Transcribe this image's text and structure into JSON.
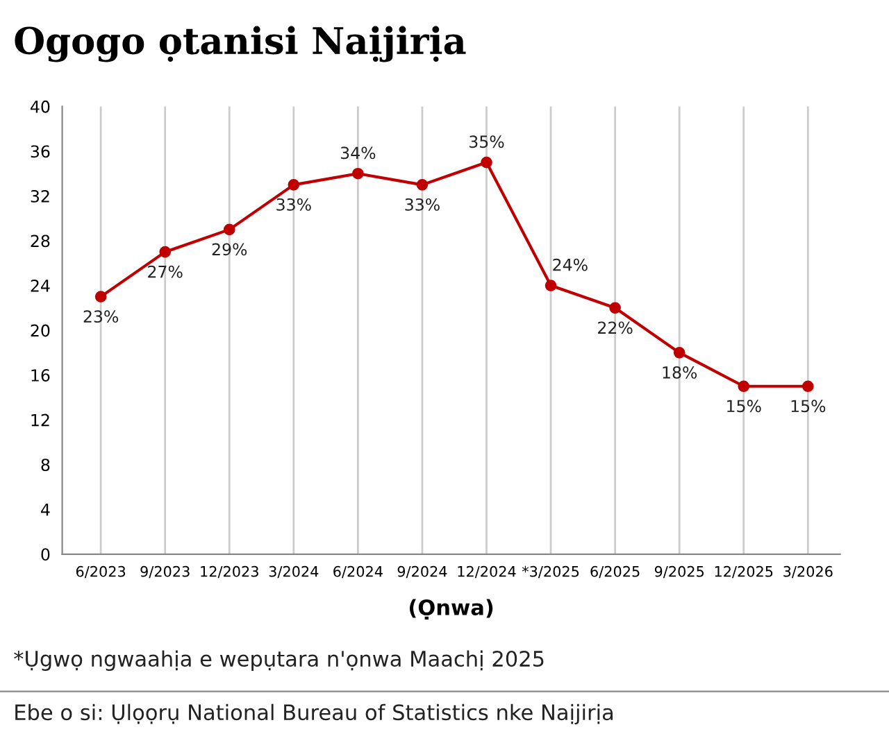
{
  "chart_data": {
    "type": "line",
    "title": "Ogogo ọtanisi Naịjirịa",
    "xlabel": "(Ọnwa)",
    "categories": [
      "6/2023",
      "9/2023",
      "12/2023",
      "3/2024",
      "6/2024",
      "9/2024",
      "12/2024",
      "*3/2025",
      "6/2025",
      "9/2025",
      "12/2025",
      "3/2026"
    ],
    "series": [
      {
        "color": "#c00000",
        "values": [
          23,
          27,
          29,
          33,
          34,
          33,
          35,
          24,
          22,
          18,
          15,
          15
        ],
        "value_labels": [
          "23%",
          "27%",
          "29%",
          "33%",
          "34%",
          "33%",
          "35%",
          "24%",
          "22%",
          "18%",
          "15%",
          "15%"
        ]
      }
    ],
    "ylim": [
      0,
      40
    ],
    "yticks": [
      0,
      4,
      8,
      12,
      16,
      20,
      24,
      28,
      32,
      36,
      40
    ],
    "grid": "x",
    "marker": "circle",
    "line_style": "solid",
    "annotations": [
      "*Ụgwọ ngwaahịa e wepụtara n'ọnwa Maachị 2025",
      "Ebe o si: Ụlọọrụ National Bureau of Statistics nke Naịjirịa"
    ]
  }
}
